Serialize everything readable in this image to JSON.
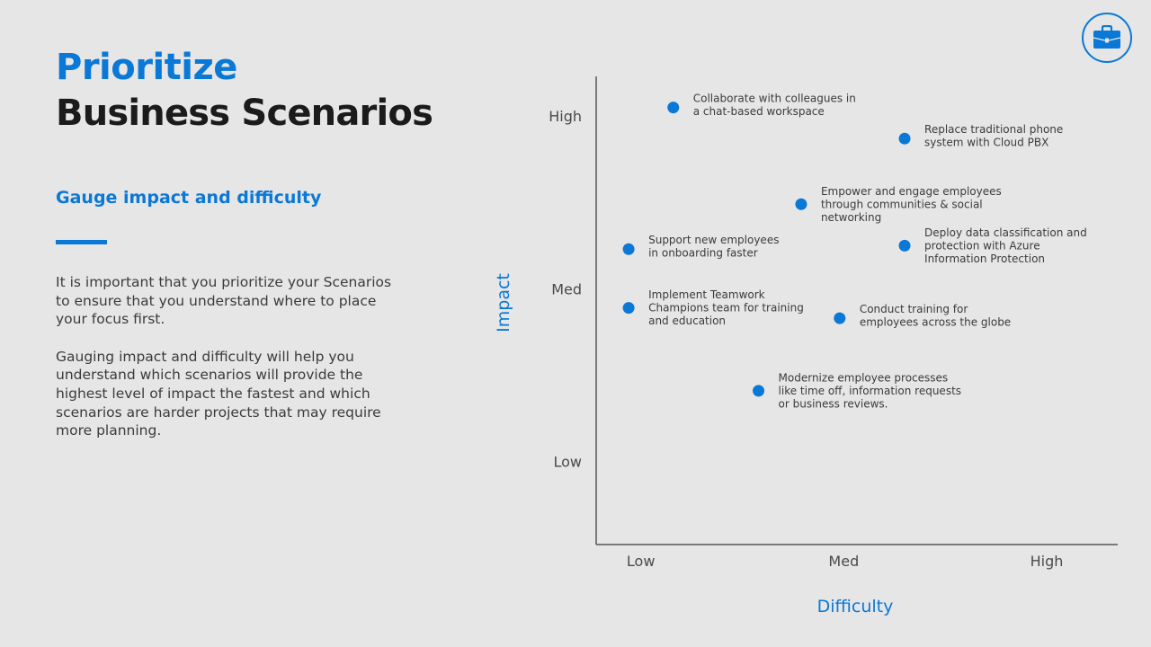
{
  "header": {
    "title_line1": "Prioritize",
    "title_line2": "Business Scenarios",
    "subtitle": "Gauge impact and difficulty"
  },
  "body": {
    "paragraphs": [
      "It is important that you prioritize your Scenarios to ensure that you understand where to place your focus first.",
      "Gauging impact and difficulty will help you understand which scenarios will provide the highest level of impact the fastest and which scenarios are harder projects that may require more planning."
    ]
  },
  "badge": {
    "icon": "briefcase-icon"
  },
  "colors": {
    "accent": "#0a78d7",
    "title": "#1b1b1b",
    "text": "#3b3b3b",
    "background": "#e6e6e6",
    "axis": "#333333"
  },
  "chart_data": {
    "type": "scatter",
    "title": "",
    "xlabel": "Difficulty",
    "ylabel": "Impact",
    "x_ticks": [
      {
        "value": 1,
        "label": "Low"
      },
      {
        "value": 2,
        "label": "Med"
      },
      {
        "value": 3,
        "label": "High"
      }
    ],
    "y_ticks": [
      {
        "value": 1,
        "label": "Low"
      },
      {
        "value": 2,
        "label": "Med"
      },
      {
        "value": 3,
        "label": "High"
      }
    ],
    "xlim": [
      0.78,
      3.35
    ],
    "ylim": [
      0.52,
      3.23
    ],
    "grid": false,
    "legend": "none",
    "points": [
      {
        "x": 1.16,
        "y": 3.05,
        "label": [
          "Collaborate with colleagues in",
          "a chat-based workspace"
        ]
      },
      {
        "x": 2.3,
        "y": 2.87,
        "label": [
          "Replace traditional phone",
          "system with  Cloud PBX"
        ]
      },
      {
        "x": 1.79,
        "y": 2.49,
        "label": [
          "Empower and engage employees",
          "through  communities  & social",
          "networking"
        ]
      },
      {
        "x": 0.94,
        "y": 2.23,
        "label": [
          "Support new employees",
          "in onboarding faster"
        ]
      },
      {
        "x": 2.3,
        "y": 2.25,
        "label": [
          "Deploy data classification and",
          "protection with Azure",
          "Information  Protection"
        ]
      },
      {
        "x": 0.94,
        "y": 1.89,
        "label": [
          "Implement  Teamwork",
          "Champions team for training",
          "and education"
        ]
      },
      {
        "x": 1.98,
        "y": 1.83,
        "label": [
          "Conduct training for",
          "employees across the globe"
        ]
      },
      {
        "x": 1.58,
        "y": 1.41,
        "label": [
          "Modernize employee processes",
          "like time off, information requests",
          "or business reviews."
        ]
      }
    ]
  }
}
